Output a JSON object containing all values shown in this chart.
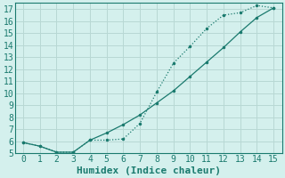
{
  "xlabel": "Humidex (Indice chaleur)",
  "xlim": [
    -0.5,
    15.5
  ],
  "ylim": [
    5,
    17.5
  ],
  "xticks": [
    0,
    1,
    2,
    3,
    4,
    5,
    6,
    7,
    8,
    9,
    10,
    11,
    12,
    13,
    14,
    15
  ],
  "yticks": [
    5,
    6,
    7,
    8,
    9,
    10,
    11,
    12,
    13,
    14,
    15,
    16,
    17
  ],
  "bg_color": "#d4f0ed",
  "grid_color": "#b8d8d4",
  "line_color": "#1a7a6e",
  "line1_x": [
    0,
    1,
    2,
    3,
    4,
    5,
    6,
    7,
    8,
    9,
    10,
    11,
    12,
    13,
    14,
    15
  ],
  "line1_y": [
    5.9,
    5.6,
    5.1,
    5.1,
    6.1,
    6.1,
    6.2,
    7.5,
    10.1,
    12.5,
    13.9,
    15.4,
    16.5,
    16.7,
    17.3,
    17.1
  ],
  "line2_x": [
    0,
    1,
    2,
    3,
    4,
    5,
    6,
    7,
    8,
    9,
    10,
    11,
    12,
    13,
    14,
    15
  ],
  "line2_y": [
    5.9,
    5.6,
    5.1,
    5.1,
    6.1,
    6.7,
    7.4,
    8.2,
    9.2,
    10.2,
    11.4,
    12.6,
    13.8,
    15.1,
    16.3,
    17.1
  ],
  "font_family": "monospace",
  "tick_fontsize": 7,
  "label_fontsize": 8
}
